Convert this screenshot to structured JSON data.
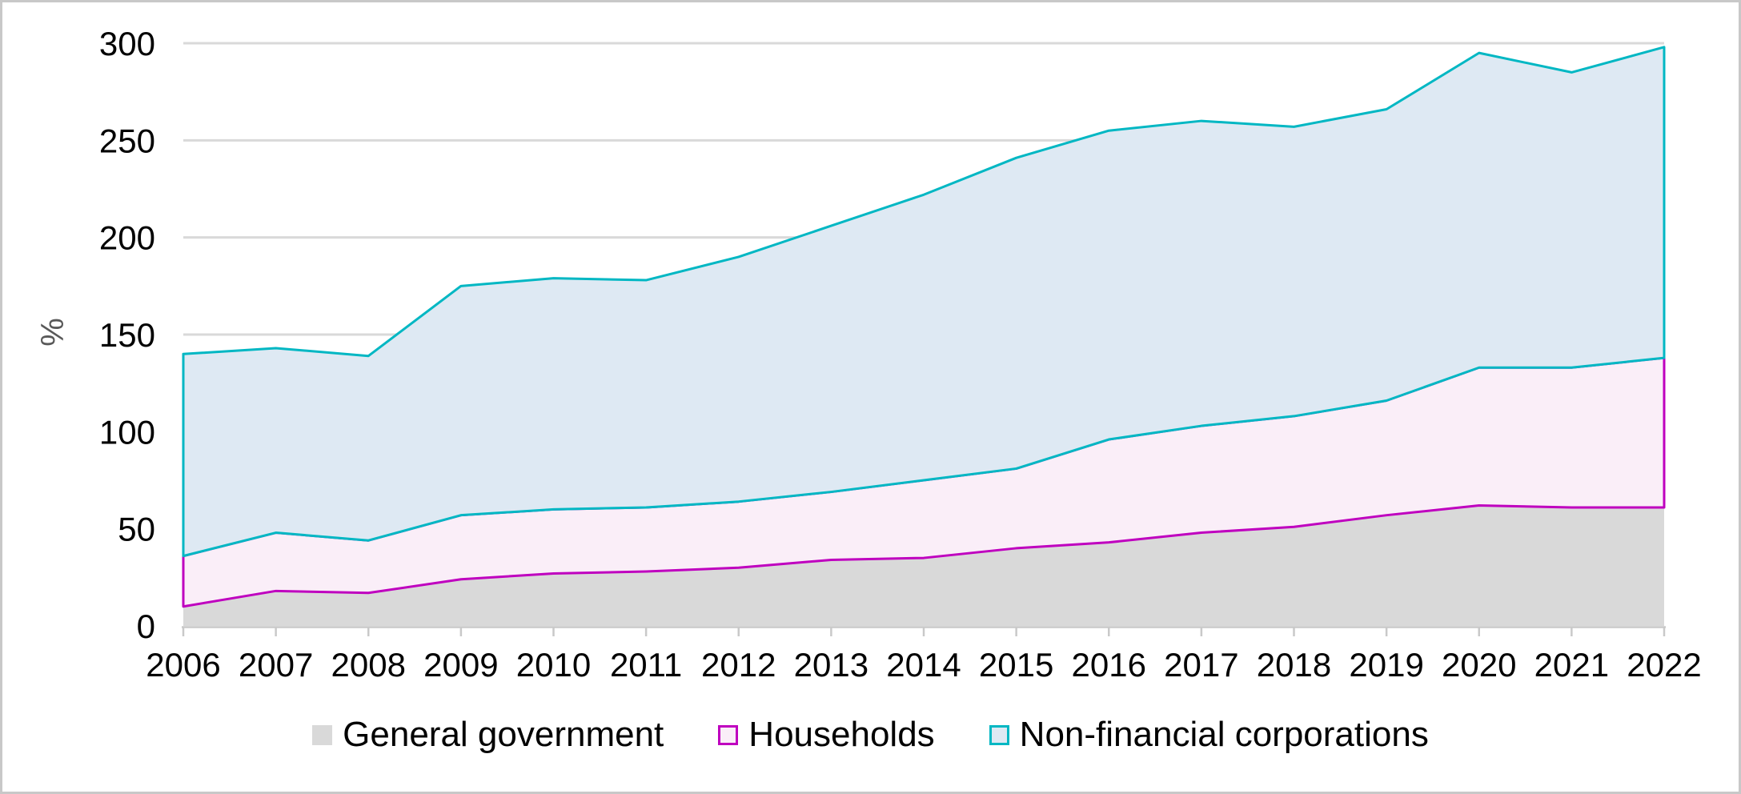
{
  "chart_data": {
    "type": "area",
    "stacked": true,
    "title": "",
    "xlabel": "",
    "ylabel": "%",
    "ylim": [
      0,
      300
    ],
    "y_tick_step": 50,
    "y_ticks": [
      0,
      50,
      100,
      150,
      200,
      250,
      300
    ],
    "gridlines": "horizontal",
    "legend_position": "bottom",
    "categories": [
      2006,
      2007,
      2008,
      2009,
      2010,
      2011,
      2012,
      2013,
      2014,
      2015,
      2016,
      2017,
      2018,
      2019,
      2020,
      2021,
      2022
    ],
    "series": [
      {
        "name": "General government",
        "fill": "#D9D9D9",
        "stroke": "none",
        "values": [
          10,
          18,
          17,
          24,
          27,
          28,
          30,
          34,
          35,
          40,
          43,
          48,
          51,
          57,
          62,
          61,
          61
        ]
      },
      {
        "name": "Households",
        "fill": "#FAEEF8",
        "stroke": "#BF00BF",
        "values": [
          26,
          30,
          27,
          33,
          33,
          33,
          34,
          35,
          40,
          41,
          53,
          55,
          57,
          59,
          71,
          72,
          77
        ]
      },
      {
        "name": "Non-financial corporations",
        "fill": "#DEE9F3",
        "stroke": "#00B7C3",
        "values": [
          104,
          95,
          95,
          118,
          119,
          117,
          126,
          137,
          147,
          160,
          159,
          157,
          149,
          150,
          162,
          152,
          160
        ]
      }
    ],
    "stacked_totals": [
      140,
      143,
      139,
      175,
      179,
      178,
      190,
      206,
      222,
      241,
      255,
      260,
      257,
      266,
      295,
      285,
      298
    ],
    "colors": {
      "gridline": "#D9D9D9",
      "axis_line": "#C9C9C9",
      "tick_label": "#000000",
      "y_axis_title": "#595959",
      "frame_border": "#C8C8C8",
      "background": "#FFFFFF"
    }
  }
}
